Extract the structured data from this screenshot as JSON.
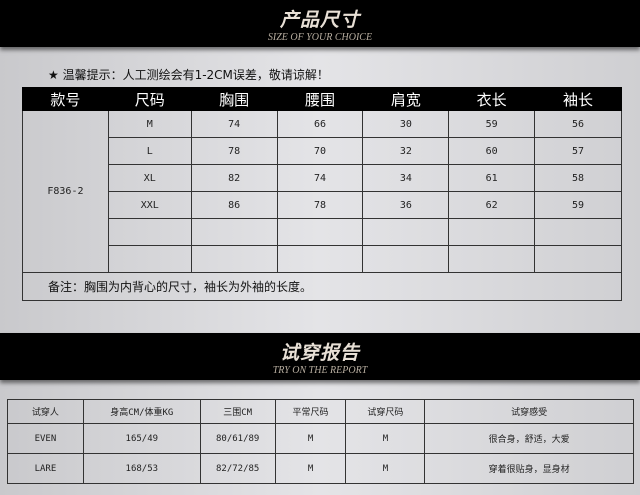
{
  "size_section": {
    "title": "产品尺寸",
    "subtitle": "SIZE OF YOUR CHOICE",
    "tip": "★ 温馨提示：人工测绘会有1-2CM误差，敬请谅解！",
    "headers": [
      "款号",
      "尺码",
      "胸围",
      "腰围",
      "肩宽",
      "衣长",
      "袖长"
    ],
    "style_no": "F836-2",
    "rows": [
      [
        "M",
        "74",
        "66",
        "30",
        "59",
        "56"
      ],
      [
        "L",
        "78",
        "70",
        "32",
        "60",
        "57"
      ],
      [
        "XL",
        "82",
        "74",
        "34",
        "61",
        "58"
      ],
      [
        "XXL",
        "86",
        "78",
        "36",
        "62",
        "59"
      ],
      [
        "",
        "",
        "",
        "",
        "",
        ""
      ],
      [
        "",
        "",
        "",
        "",
        "",
        ""
      ]
    ],
    "note": "备注：胸围为内背心的尺寸，袖长为外袖的长度。"
  },
  "report_section": {
    "title": "试穿报告",
    "subtitle": "TRY ON THE REPORT",
    "headers": [
      "试穿人",
      "身高CM/体重KG",
      "三围CM",
      "平常尺码",
      "试穿尺码",
      "试穿感受"
    ],
    "rows": [
      [
        "EVEN",
        "165/49",
        "80/61/89",
        "M",
        "M",
        "很合身，舒适，大爱"
      ],
      [
        "LARE",
        "168/53",
        "82/72/85",
        "M",
        "M",
        "穿着很贴身，显身材"
      ]
    ]
  }
}
